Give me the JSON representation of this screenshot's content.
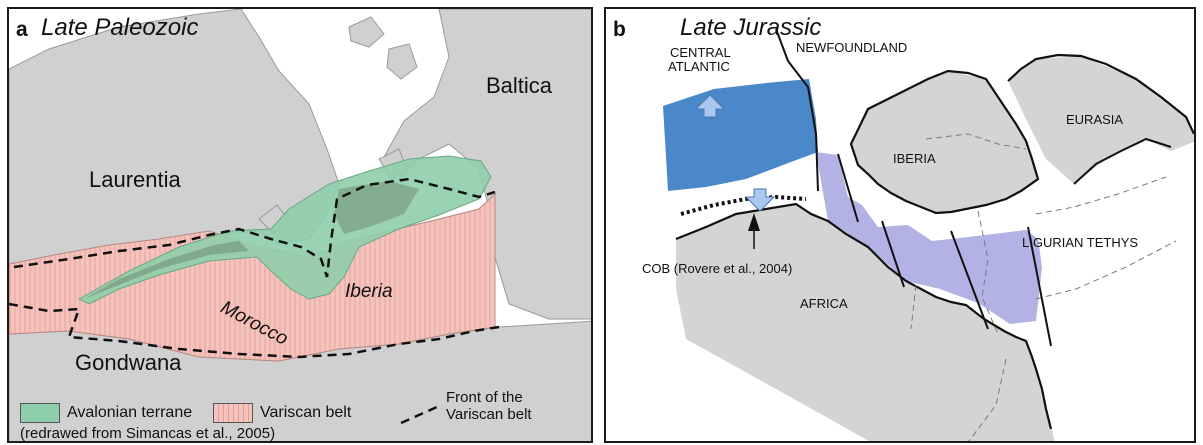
{
  "panel_a": {
    "letter": "a",
    "title": "Late Paleozoic",
    "labels": {
      "baltica": "Baltica",
      "laurentia": "Laurentia",
      "iberia": "Iberia",
      "morocco": "Morocco",
      "gondwana": "Gondwana"
    },
    "legend": {
      "avalonian": "Avalonian terrane",
      "variscan": "Variscan belt",
      "front_line1": "Front of the",
      "front_line2": "Variscan belt",
      "avalonian_color": "#8fceaa",
      "variscan_color": "#f5c3bd"
    },
    "source": "(redrawed from Simancas et al., 2005)"
  },
  "panel_b": {
    "letter": "b",
    "title": "Late Jurassic",
    "labels": {
      "central_atlantic_1": "CENTRAL",
      "central_atlantic_2": "ATLANTIC",
      "newfoundland": "NEWFOUNDLAND",
      "eurasia": "EURASIA",
      "iberia": "IBERIA",
      "ligurian_tethys": "LIGURIAN TETHYS",
      "cob": "COB (Rovere et al., 2004)",
      "africa": "AFRICA"
    },
    "colors": {
      "central_atlantic": "#4a88c9",
      "ligurian_tethys": "#b2b2e4",
      "land": "#d4d4d4"
    }
  }
}
